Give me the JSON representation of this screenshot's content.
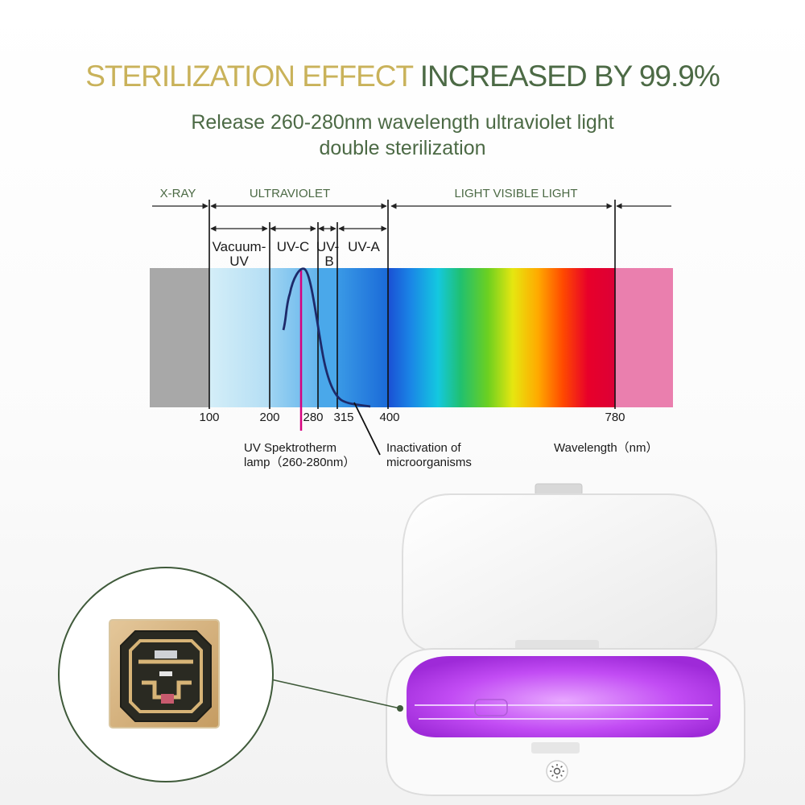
{
  "headline": {
    "part1": "STERILIZATION EFFECT",
    "part2": "INCREASED BY 99.9%"
  },
  "subheadline": {
    "line1": "Release 260-280nm wavelength ultraviolet light",
    "line2": "double sterilization"
  },
  "spectrum": {
    "region_labels": {
      "xray": "X-RAY",
      "ultraviolet": "ULTRAVIOLET",
      "visible": "LIGHT VISIBLE LIGHT"
    },
    "band_labels": {
      "vacuum_uv_1": "Vacuum-",
      "vacuum_uv_2": "UV",
      "uvc": "UV-C",
      "uvb_1": "UV-",
      "uvb_2": "B",
      "uva": "UV-A"
    },
    "tick_labels": {
      "t100": "100",
      "t200": "200",
      "t280": "280",
      "t315": "315",
      "t400": "400",
      "t780": "780"
    },
    "annotations": {
      "lamp_1": "UV Spektrotherm",
      "lamp_2": "lamp（260-280nm）",
      "inactivation_1": "Inactivation  of",
      "inactivation_2": "microorganisms",
      "wavelength": "Wavelength（nm）"
    },
    "colors": {
      "xray": "#a8a8a8",
      "vacuum_uv": "#cdeaf6",
      "uvc": "#8fcbf0",
      "uva": "#2e8de0",
      "infrared": "#ea7fae",
      "lamp_line": "#d6007e",
      "curve": "#1d2a6a"
    }
  },
  "product": {
    "icons": [
      "sun-icon",
      "uv-led-chip-icon"
    ],
    "glow_color": "#c040f0",
    "ring_color": "#3f5a3a"
  }
}
